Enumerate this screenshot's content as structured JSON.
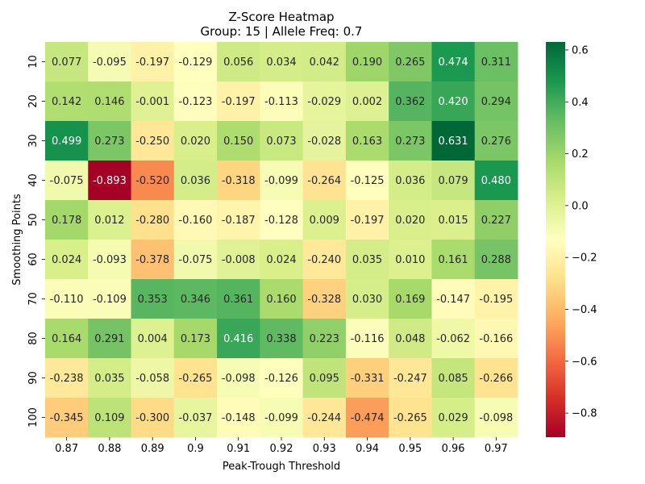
{
  "chart_data": {
    "type": "heatmap",
    "title": "Z-Score Heatmap",
    "subtitle": "Group: 15 | Allele Freq: 0.7",
    "xlabel": "Peak-Trough Threshold",
    "ylabel": "Smoothing Points",
    "x_categories": [
      "0.87",
      "0.88",
      "0.89",
      "0.9",
      "0.91",
      "0.92",
      "0.93",
      "0.94",
      "0.95",
      "0.96",
      "0.97"
    ],
    "y_categories": [
      "10",
      "20",
      "30",
      "40",
      "50",
      "60",
      "70",
      "80",
      "90",
      "100"
    ],
    "values": [
      [
        0.077,
        -0.095,
        -0.197,
        -0.129,
        0.056,
        0.034,
        0.042,
        0.19,
        0.265,
        0.474,
        0.311
      ],
      [
        0.142,
        0.146,
        -0.001,
        -0.123,
        -0.197,
        -0.113,
        -0.029,
        0.002,
        0.362,
        0.42,
        0.294
      ],
      [
        0.499,
        0.273,
        -0.25,
        0.02,
        0.15,
        0.073,
        -0.028,
        0.163,
        0.273,
        0.631,
        0.276
      ],
      [
        -0.075,
        -0.893,
        -0.52,
        0.036,
        -0.318,
        -0.099,
        -0.264,
        -0.125,
        0.036,
        0.079,
        0.48
      ],
      [
        0.178,
        0.012,
        -0.28,
        -0.16,
        -0.187,
        -0.128,
        0.009,
        -0.197,
        0.02,
        0.015,
        0.227
      ],
      [
        0.024,
        -0.093,
        -0.378,
        -0.075,
        -0.008,
        0.024,
        -0.24,
        0.035,
        0.01,
        0.161,
        0.288
      ],
      [
        -0.11,
        -0.109,
        0.353,
        0.346,
        0.361,
        0.16,
        -0.328,
        0.03,
        0.169,
        -0.147,
        -0.195
      ],
      [
        0.164,
        0.291,
        0.004,
        0.173,
        0.416,
        0.338,
        0.223,
        -0.116,
        0.048,
        -0.062,
        -0.166
      ],
      [
        -0.238,
        0.035,
        -0.058,
        -0.265,
        -0.098,
        -0.126,
        0.095,
        -0.331,
        -0.247,
        0.085,
        -0.266
      ],
      [
        -0.345,
        0.109,
        -0.3,
        -0.037,
        -0.148,
        -0.099,
        -0.244,
        -0.474,
        -0.265,
        0.029,
        -0.098
      ]
    ],
    "color_scale": {
      "colormap": "RdYlGn",
      "min": -0.893,
      "max": 0.631
    },
    "colorbar_ticks": [
      0.6,
      0.4,
      0.2,
      0.0,
      -0.2,
      -0.4,
      -0.6,
      -0.8
    ],
    "colorbar_tick_labels": [
      "0.6",
      "0.4",
      "0.2",
      "0.0",
      "−0.2",
      "−0.4",
      "−0.6",
      "−0.8"
    ],
    "legend_placement": "right"
  }
}
